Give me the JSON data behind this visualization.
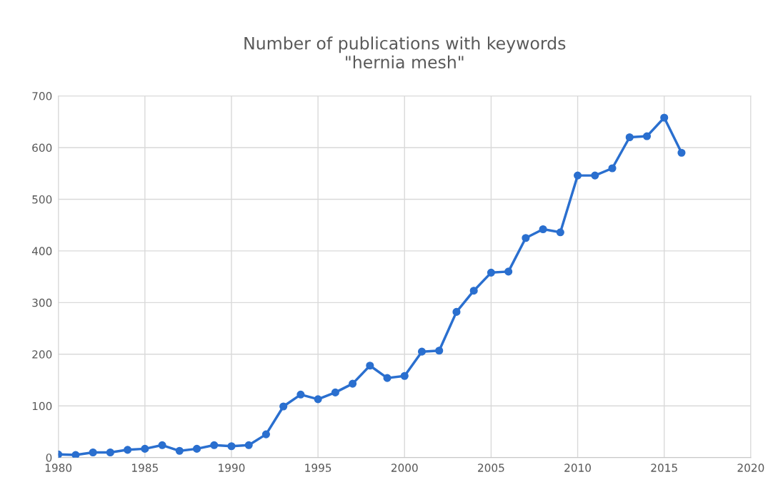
{
  "chart_data": {
    "type": "line",
    "title": "Number of publications with keywords\n\"hernia mesh\"",
    "x": [
      1980,
      1981,
      1982,
      1983,
      1984,
      1985,
      1986,
      1987,
      1988,
      1989,
      1990,
      1991,
      1992,
      1993,
      1994,
      1995,
      1996,
      1997,
      1998,
      1999,
      2000,
      2001,
      2002,
      2003,
      2004,
      2005,
      2006,
      2007,
      2008,
      2009,
      2010,
      2011,
      2012,
      2013,
      2014,
      2015,
      2016
    ],
    "series": [
      {
        "color": "#2a6fcf",
        "values": [
          6,
          5,
          10,
          10,
          15,
          17,
          24,
          13,
          17,
          24,
          22,
          24,
          45,
          99,
          122,
          113,
          126,
          143,
          178,
          154,
          158,
          205,
          207,
          282,
          323,
          358,
          360,
          425,
          442,
          436,
          546,
          546,
          560,
          620,
          622,
          658,
          590
        ]
      }
    ],
    "xlim": [
      1980,
      2020
    ],
    "xticks": [
      1980,
      1985,
      1990,
      1995,
      2000,
      2005,
      2010,
      2015,
      2020
    ],
    "ylim": [
      0,
      700
    ],
    "yticks": [
      0,
      100,
      200,
      300,
      400,
      500,
      600,
      700
    ],
    "grid": true,
    "marker": "circle",
    "line_style": "solid",
    "legend": false
  }
}
